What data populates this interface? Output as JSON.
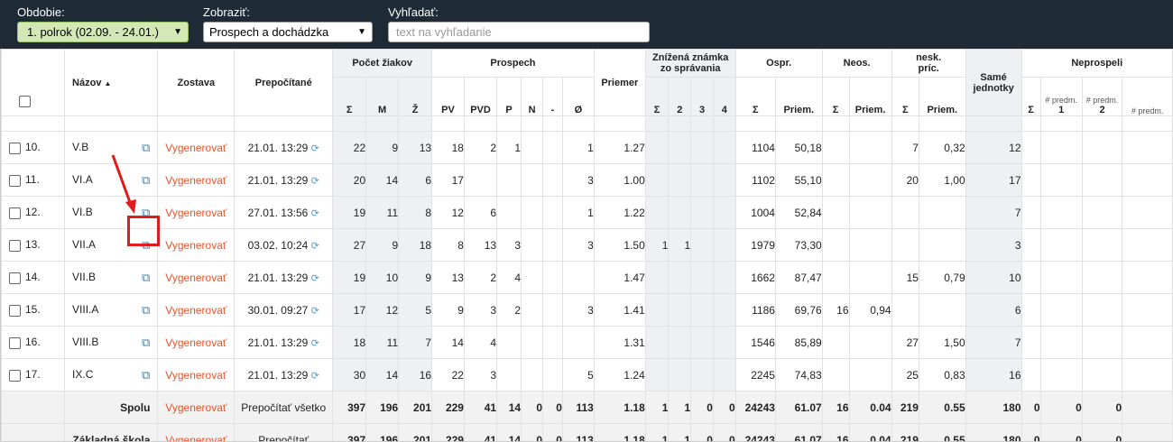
{
  "toolbar": {
    "period_label": "Obdobie:",
    "period_value": "1. polrok (02.09. - 24.01.)",
    "view_label": "Zobraziť:",
    "view_value": "Prospech a dochádzka",
    "search_label": "Vyhľadať:",
    "search_placeholder": "text na vyhľadanie"
  },
  "headers": {
    "nazov": "Názov",
    "zostava": "Zostava",
    "prepocitane": "Prepočítané",
    "pocet_ziakov": "Počet žiakov",
    "prospech": "Prospech",
    "priemer": "Priemer",
    "znizena_1": "Znížená známka",
    "znizena_2": "zo správania",
    "ospr": "Ospr.",
    "neos": "Neos.",
    "nesk_1": "nesk.",
    "nesk_2": "príc.",
    "same_1": "Samé",
    "same_2": "jednotky",
    "neprospeli": "Neprospeli",
    "sigma": "Σ",
    "m": "M",
    "z": "Ž",
    "pv": "PV",
    "pvd": "PVD",
    "p": "P",
    "n": "N",
    "dash": "-",
    "avg": "Ø",
    "g2": "2",
    "g3": "3",
    "g4": "4",
    "priem": "Priem.",
    "predm": "# predm.",
    "n1": "1",
    "n2": "2"
  },
  "action_label": "Vygenerovať",
  "rows": [
    {
      "no": "10.",
      "name": "V.B",
      "date": "21.01. 13:29",
      "s": "22",
      "m": "9",
      "z": "13",
      "pv": "18",
      "pvd": "2",
      "p": "1",
      "n": "",
      "d": "",
      "avg": "1",
      "priemer": "1.27",
      "z1": "",
      "z2": "",
      "z3": "",
      "z4": "",
      "os": "1104",
      "osp": "50,18",
      "ns": "",
      "np": "",
      "ks": "7",
      "kp": "0,32",
      "same": "12"
    },
    {
      "no": "11.",
      "name": "VI.A",
      "date": "21.01. 13:29",
      "s": "20",
      "m": "14",
      "z": "6",
      "pv": "17",
      "pvd": "",
      "p": "",
      "n": "",
      "d": "",
      "avg": "3",
      "priemer": "1.00",
      "z1": "",
      "z2": "",
      "z3": "",
      "z4": "",
      "os": "1102",
      "osp": "55,10",
      "ns": "",
      "np": "",
      "ks": "20",
      "kp": "1,00",
      "same": "17"
    },
    {
      "no": "12.",
      "name": "VI.B",
      "date": "27.01. 13:56",
      "s": "19",
      "m": "11",
      "z": "8",
      "pv": "12",
      "pvd": "6",
      "p": "",
      "n": "",
      "d": "",
      "avg": "1",
      "priemer": "1.22",
      "z1": "",
      "z2": "",
      "z3": "",
      "z4": "",
      "os": "1004",
      "osp": "52,84",
      "ns": "",
      "np": "",
      "ks": "",
      "kp": "",
      "same": "7"
    },
    {
      "no": "13.",
      "name": "VII.A",
      "date": "03.02. 10:24",
      "s": "27",
      "m": "9",
      "z": "18",
      "pv": "8",
      "pvd": "13",
      "p": "3",
      "n": "",
      "d": "",
      "avg": "3",
      "priemer": "1.50",
      "z1": "1",
      "z2": "1",
      "z3": "",
      "z4": "",
      "os": "1979",
      "osp": "73,30",
      "ns": "",
      "np": "",
      "ks": "",
      "kp": "",
      "same": "3"
    },
    {
      "no": "14.",
      "name": "VII.B",
      "date": "21.01. 13:29",
      "s": "19",
      "m": "10",
      "z": "9",
      "pv": "13",
      "pvd": "2",
      "p": "4",
      "n": "",
      "d": "",
      "avg": "",
      "priemer": "1.47",
      "z1": "",
      "z2": "",
      "z3": "",
      "z4": "",
      "os": "1662",
      "osp": "87,47",
      "ns": "",
      "np": "",
      "ks": "15",
      "kp": "0,79",
      "same": "10"
    },
    {
      "no": "15.",
      "name": "VIII.A",
      "date": "30.01. 09:27",
      "s": "17",
      "m": "12",
      "z": "5",
      "pv": "9",
      "pvd": "3",
      "p": "2",
      "n": "",
      "d": "",
      "avg": "3",
      "priemer": "1.41",
      "z1": "",
      "z2": "",
      "z3": "",
      "z4": "",
      "os": "1186",
      "osp": "69,76",
      "ns": "16",
      "np": "0,94",
      "ks": "",
      "kp": "",
      "same": "6"
    },
    {
      "no": "16.",
      "name": "VIII.B",
      "date": "21.01. 13:29",
      "s": "18",
      "m": "11",
      "z": "7",
      "pv": "14",
      "pvd": "4",
      "p": "",
      "n": "",
      "d": "",
      "avg": "",
      "priemer": "1.31",
      "z1": "",
      "z2": "",
      "z3": "",
      "z4": "",
      "os": "1546",
      "osp": "85,89",
      "ns": "",
      "np": "",
      "ks": "27",
      "kp": "1,50",
      "same": "7"
    },
    {
      "no": "17.",
      "name": "IX.C",
      "date": "21.01. 13:29",
      "s": "30",
      "m": "14",
      "z": "16",
      "pv": "22",
      "pvd": "3",
      "p": "",
      "n": "",
      "d": "",
      "avg": "5",
      "priemer": "1.24",
      "z1": "",
      "z2": "",
      "z3": "",
      "z4": "",
      "os": "2245",
      "osp": "74,83",
      "ns": "",
      "np": "",
      "ks": "25",
      "kp": "0,83",
      "same": "16"
    }
  ],
  "summary": [
    {
      "label": "Spolu",
      "action": "Vygenerovať",
      "recalc": "Prepočítať všetko",
      "s": "397",
      "m": "196",
      "z": "201",
      "pv": "229",
      "pvd": "41",
      "p": "14",
      "n": "0",
      "d": "0",
      "avg": "113",
      "priemer": "1.18",
      "z1": "1",
      "z2": "1",
      "z3": "0",
      "z4": "0",
      "os": "24243",
      "osp": "61.07",
      "ns": "16",
      "np": "0.04",
      "ks": "219",
      "kp": "0.55",
      "same": "180",
      "n0": "0",
      "n1": "0",
      "n2": "0"
    },
    {
      "label": "Základná škola",
      "action": "Vygenerovať",
      "recalc": "Prepočítať",
      "s": "397",
      "m": "196",
      "z": "201",
      "pv": "229",
      "pvd": "41",
      "p": "14",
      "n": "0",
      "d": "0",
      "avg": "113",
      "priemer": "1.18",
      "z1": "1",
      "z2": "1",
      "z3": "0",
      "z4": "0",
      "os": "24243",
      "osp": "61.07",
      "ns": "16",
      "np": "0.04",
      "ks": "219",
      "kp": "0.55",
      "same": "180",
      "n0": "0",
      "n1": "0",
      "n2": "0"
    }
  ],
  "colors": {
    "accent": "#e8532b",
    "link_icon": "#2f87c5",
    "highlight": "#e21c1c",
    "header_bg": "#1f2a37"
  }
}
